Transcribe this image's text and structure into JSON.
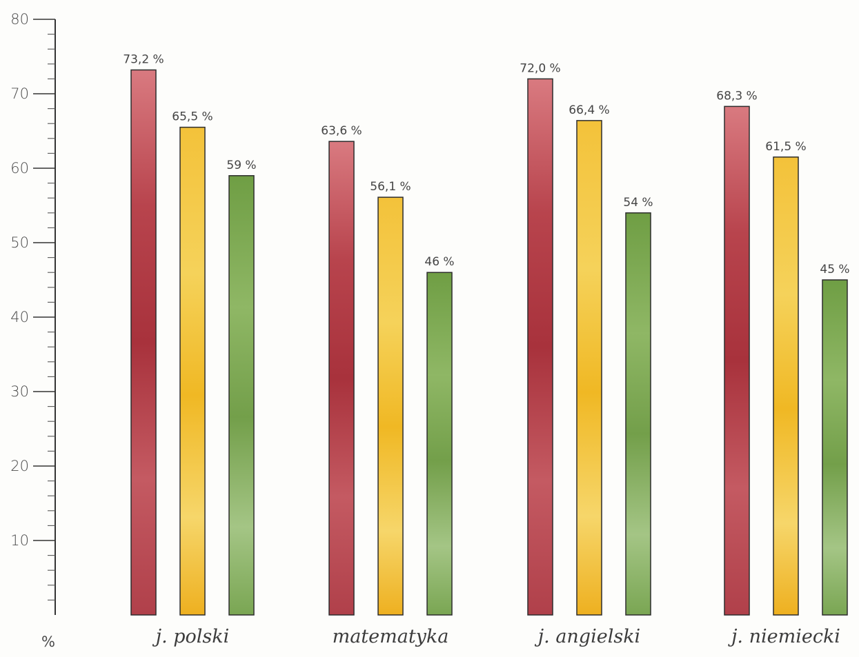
{
  "chart_data": {
    "type": "bar",
    "categories": [
      "j. polski",
      "matematyka",
      "j. angielski",
      "j. niemiecki"
    ],
    "series": [
      {
        "values": [
          73.2,
          63.6,
          72.0,
          68.3
        ],
        "labels": [
          "73,2 %",
          "63,6 %",
          "72,0 %",
          "68,3 %"
        ],
        "color": "#b5444c"
      },
      {
        "values": [
          65.5,
          56.1,
          66.4,
          61.5
        ],
        "labels": [
          "65,5 %",
          "56,1 %",
          "66,4 %",
          "61,5 %"
        ],
        "color": "#f0bd2a"
      },
      {
        "values": [
          59,
          46,
          54,
          45
        ],
        "labels": [
          "59 %",
          "46 %",
          "54 %",
          "45 %"
        ],
        "color": "#7ea851"
      }
    ],
    "ylim": [
      0,
      80
    ],
    "yticks": [
      10,
      20,
      30,
      40,
      50,
      60,
      70,
      80
    ],
    "unit_label": "%",
    "grid": false,
    "legend": "none"
  }
}
